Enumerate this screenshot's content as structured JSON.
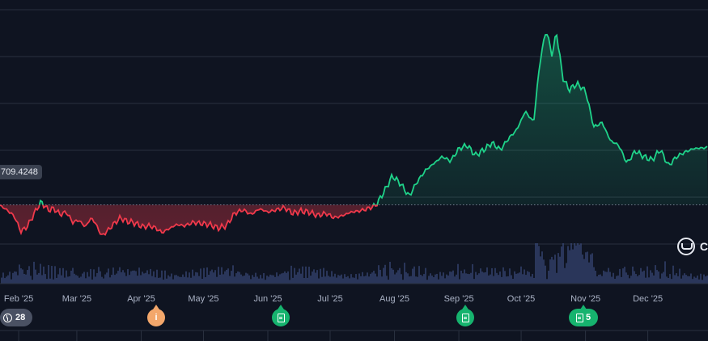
{
  "chart_data": {
    "type": "area",
    "baseline": 709.4248,
    "baseline_label": "709.4248",
    "x_labels": [
      "Feb '25",
      "Mar '25",
      "Apr '25",
      "May '25",
      "Jun '25",
      "Jul '25",
      "Aug '25",
      "Sep '25",
      "Oct '25",
      "Nov '25",
      "Dec '25"
    ],
    "x_start": "2025-01-23",
    "x_end": "2025-12-30",
    "grid": true,
    "y_range": [
      640,
      890
    ],
    "colors": {
      "above": "#1fd38a",
      "below": "#f0394b",
      "volume": "#3a4a7a",
      "background": "#0f1421"
    },
    "series": [
      {
        "values": [
          [
            "2025-01-23",
            709
          ],
          [
            "2025-01-27",
            704
          ],
          [
            "2025-01-30",
            699
          ],
          [
            "2025-02-02",
            686
          ],
          [
            "2025-02-05",
            690
          ],
          [
            "2025-02-08",
            700
          ],
          [
            "2025-02-10",
            707
          ],
          [
            "2025-02-12",
            712
          ],
          [
            "2025-02-15",
            705
          ],
          [
            "2025-02-18",
            706
          ],
          [
            "2025-02-21",
            701
          ],
          [
            "2025-02-24",
            703
          ],
          [
            "2025-02-27",
            694
          ],
          [
            "2025-03-02",
            696
          ],
          [
            "2025-03-05",
            690
          ],
          [
            "2025-03-08",
            698
          ],
          [
            "2025-03-10",
            693
          ],
          [
            "2025-03-13",
            682
          ],
          [
            "2025-03-16",
            687
          ],
          [
            "2025-03-19",
            693
          ],
          [
            "2025-03-22",
            698
          ],
          [
            "2025-03-25",
            695
          ],
          [
            "2025-03-28",
            694
          ],
          [
            "2025-04-02",
            690
          ],
          [
            "2025-04-05",
            691
          ],
          [
            "2025-04-08",
            689
          ],
          [
            "2025-04-11",
            685
          ],
          [
            "2025-04-14",
            688
          ],
          [
            "2025-04-18",
            692
          ],
          [
            "2025-04-22",
            691
          ],
          [
            "2025-04-26",
            694
          ],
          [
            "2025-04-30",
            693
          ],
          [
            "2025-05-04",
            692
          ],
          [
            "2025-05-08",
            689
          ],
          [
            "2025-05-12",
            691
          ],
          [
            "2025-05-16",
            702
          ],
          [
            "2025-05-20",
            705
          ],
          [
            "2025-05-24",
            701
          ],
          [
            "2025-05-28",
            706
          ],
          [
            "2025-06-01",
            703
          ],
          [
            "2025-06-05",
            705
          ],
          [
            "2025-06-09",
            707
          ],
          [
            "2025-06-13",
            702
          ],
          [
            "2025-06-17",
            704
          ],
          [
            "2025-06-21",
            703
          ],
          [
            "2025-06-25",
            700
          ],
          [
            "2025-06-29",
            702
          ],
          [
            "2025-07-03",
            698
          ],
          [
            "2025-07-07",
            700
          ],
          [
            "2025-07-11",
            703
          ],
          [
            "2025-07-15",
            704
          ],
          [
            "2025-07-19",
            706
          ],
          [
            "2025-07-23",
            709
          ],
          [
            "2025-07-27",
            721
          ],
          [
            "2025-07-31",
            735
          ],
          [
            "2025-08-04",
            728
          ],
          [
            "2025-08-08",
            717
          ],
          [
            "2025-08-12",
            730
          ],
          [
            "2025-08-16",
            740
          ],
          [
            "2025-08-20",
            746
          ],
          [
            "2025-08-24",
            752
          ],
          [
            "2025-08-28",
            748
          ],
          [
            "2025-09-01",
            759
          ],
          [
            "2025-09-05",
            762
          ],
          [
            "2025-09-09",
            753
          ],
          [
            "2025-09-13",
            758
          ],
          [
            "2025-09-17",
            764
          ],
          [
            "2025-09-21",
            758
          ],
          [
            "2025-09-25",
            768
          ],
          [
            "2025-09-29",
            776
          ],
          [
            "2025-10-03",
            792
          ],
          [
            "2025-10-07",
            782
          ],
          [
            "2025-10-10",
            835
          ],
          [
            "2025-10-13",
            864
          ],
          [
            "2025-10-16",
            841
          ],
          [
            "2025-10-18",
            862
          ],
          [
            "2025-10-21",
            822
          ],
          [
            "2025-10-24",
            811
          ],
          [
            "2025-10-28",
            816
          ],
          [
            "2025-11-01",
            810
          ],
          [
            "2025-11-05",
            778
          ],
          [
            "2025-11-09",
            782
          ],
          [
            "2025-11-13",
            766
          ],
          [
            "2025-11-17",
            762
          ],
          [
            "2025-11-21",
            746
          ],
          [
            "2025-11-25",
            757
          ],
          [
            "2025-11-29",
            752
          ],
          [
            "2025-12-03",
            749
          ],
          [
            "2025-12-07",
            758
          ],
          [
            "2025-12-11",
            744
          ],
          [
            "2025-12-15",
            752
          ],
          [
            "2025-12-19",
            756
          ],
          [
            "2025-12-23",
            759
          ],
          [
            "2025-12-30",
            760
          ]
        ]
      }
    ]
  },
  "events": {
    "history_count": "28",
    "info_icon": "i",
    "doc_icon": "document-icon",
    "grouped_count": "5"
  },
  "watermark": {
    "letter": "C"
  }
}
